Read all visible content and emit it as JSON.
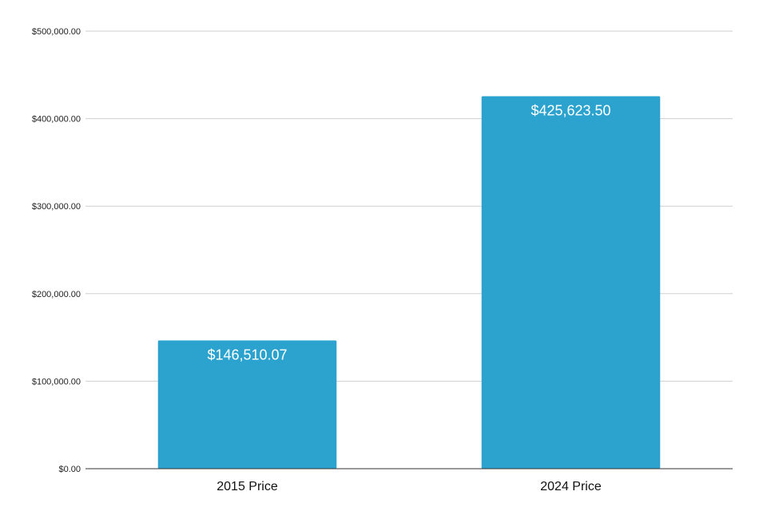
{
  "chart_data": {
    "type": "bar",
    "categories": [
      "2015 Price",
      "2024 Price"
    ],
    "values": [
      146510.07,
      425623.5
    ],
    "data_labels": [
      "$146,510.07",
      "$425,623.50"
    ],
    "ylim": [
      0,
      500000
    ],
    "yticks": [
      0,
      100000,
      200000,
      300000,
      400000,
      500000
    ],
    "ytick_labels": [
      "$0.00",
      "$100,000.00",
      "$200,000.00",
      "$300,000.00",
      "$400,000.00",
      "$500,000.00"
    ],
    "grid": true,
    "legend": "none",
    "title": "",
    "xlabel": "",
    "ylabel": "",
    "colors": {
      "bar": "#2ca3ce",
      "grid": "#cfcfcf",
      "axis": "#333333"
    }
  }
}
